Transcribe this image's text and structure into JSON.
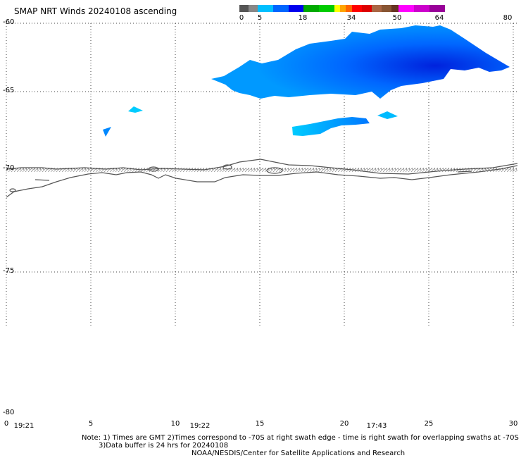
{
  "title": "SMAP NRT Winds 20240108 ascending",
  "colorbar": {
    "ticks": [
      "0",
      "5",
      "18",
      "34",
      "50",
      "64",
      "80"
    ],
    "segments": [
      "#555555",
      "#888888",
      "#00bfff",
      "#0066ff",
      "#0000ee",
      "#00aa00",
      "#00cc00",
      "#ffff00",
      "#ffa500",
      "#ff6600",
      "#ff0000",
      "#dd0000",
      "#aa6644",
      "#885533",
      "#663322",
      "#ff00ff",
      "#cc00cc",
      "#990099"
    ]
  },
  "lat_labels": [
    "-60",
    "-65",
    "-70",
    "-75",
    "-80"
  ],
  "lon_labels": [
    "0",
    "5",
    "10",
    "15",
    "20",
    "25",
    "30"
  ],
  "time_labels": [
    "19:21",
    "19:22",
    "17:43"
  ],
  "notes": {
    "line1": "Note: 1) Times are GMT 2)Times correspond to -70S at right swath edge - time is right swath for overlapping swaths at -70S",
    "line2": "3)Data buffer is 24 hrs for 20240108",
    "line3": "NOAA/NESDIS/Center for Satellite Applications and Research"
  },
  "colors": {
    "wind_light": "#00ccff",
    "wind_mid": "#0088ff",
    "wind_dark": "#0033ee",
    "coast": "#555555",
    "grid": "#444444"
  }
}
